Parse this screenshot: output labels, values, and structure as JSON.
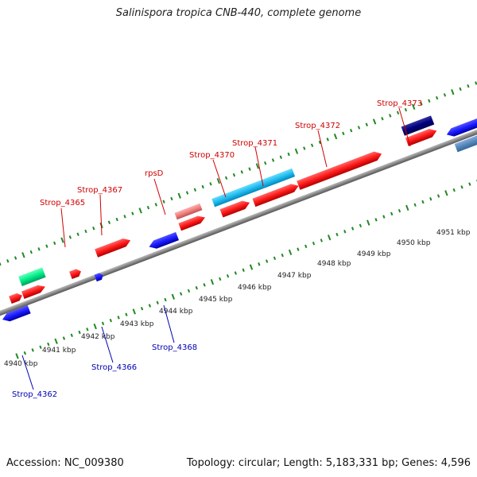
{
  "title": "Salinispora tropica CNB-440, complete genome",
  "footer": {
    "accession": "Accession: NC_009380",
    "topology": "Topology: circular; Length: 5,183,331 bp; Genes: 4,596"
  },
  "kbp_labels": [
    "4940 kbp",
    "4941 kbp",
    "4942 kbp",
    "4943 kbp",
    "4944 kbp",
    "4945 kbp",
    "4946 kbp",
    "4947 kbp",
    "4948 kbp",
    "4949 kbp",
    "4950 kbp",
    "4951 kbp"
  ],
  "gene_labels": [
    {
      "name": "Strop_4365",
      "strand": "forward"
    },
    {
      "name": "Strop_4367",
      "strand": "forward"
    },
    {
      "name": "rpsD",
      "strand": "forward"
    },
    {
      "name": "Strop_4370",
      "strand": "forward"
    },
    {
      "name": "Strop_4371",
      "strand": "forward"
    },
    {
      "name": "Strop_4372",
      "strand": "forward"
    },
    {
      "name": "Strop_4373",
      "strand": "forward"
    },
    {
      "name": "Strop_4362",
      "strand": "reverse"
    },
    {
      "name": "Strop_4366",
      "strand": "reverse"
    },
    {
      "name": "Strop_4368",
      "strand": "reverse"
    }
  ],
  "colors": {
    "forward_gene": "#ff1a1a",
    "reverse_gene": "#1a1aff",
    "rna_gene": "#00ee88",
    "pink_gene": "#f08080",
    "cyan_gene": "#22bbee",
    "navy_gene": "#000080",
    "steel_gene": "#5588bb",
    "backbone": "#888888",
    "ticks": "#228822",
    "forward_label": "#d00000",
    "reverse_label": "#0000b4"
  }
}
